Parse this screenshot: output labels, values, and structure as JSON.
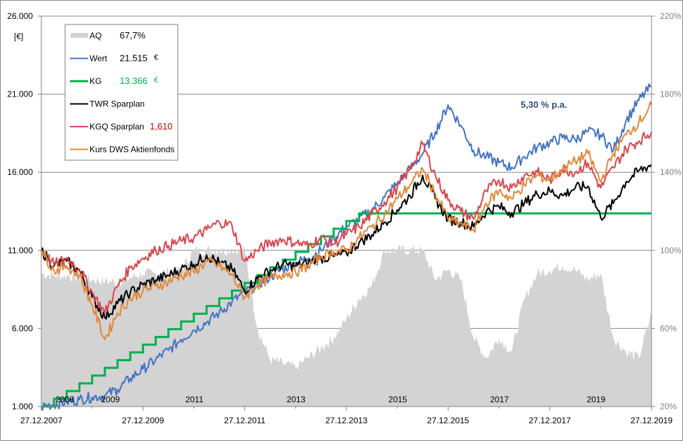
{
  "chart_data": {
    "type": "line",
    "title": "",
    "ylabel": "[€]",
    "ylabel_right": "",
    "xlabel": "",
    "ylim": [
      1000,
      26000
    ],
    "ylim_right": [
      20,
      220
    ],
    "grid": true,
    "legend_position": "top-left",
    "left_ticks": [
      "1.000",
      "6.000",
      "11.000",
      "16.000",
      "21.000",
      "26.000"
    ],
    "left_tick_values": [
      1000,
      6000,
      11000,
      16000,
      21000,
      26000
    ],
    "right_ticks": [
      "20%",
      "60%",
      "100%",
      "140%",
      "180%",
      "220%"
    ],
    "right_tick_values": [
      20,
      60,
      100,
      140,
      180,
      220
    ],
    "x_ticks": [
      "27.12.2007",
      "27.12.2009",
      "27.12.2011",
      "27.12.2013",
      "27.12.2015",
      "27.12.2017",
      "27.12.2019"
    ],
    "x_tick_years": [
      2007.99,
      2009.99,
      2011.99,
      2013.99,
      2015.99,
      2017.99,
      2019.99
    ],
    "x_range_years": [
      2007.99,
      2019.99
    ],
    "year_labels": [
      "2008",
      "2009",
      "2011",
      "2013",
      "2015",
      "2017",
      "2019"
    ],
    "year_label_positions": [
      2008.45,
      2009.35,
      2011.0,
      2013.0,
      2015.0,
      2017.0,
      2018.9
    ],
    "annotation": "5,30  % p.a.",
    "annotation_color": "#2f4e7f",
    "x_start_year": 2007.99,
    "x_step_years": 0.25,
    "series": [
      {
        "name": "AQ",
        "kind": "area",
        "axis": "right",
        "color": "#d3d3d3",
        "legend_value": "67,7%",
        "legend_value_color": "#000000",
        "legend_unit": "",
        "values": [
          88,
          87,
          87,
          86,
          85,
          84,
          84,
          86,
          88,
          88,
          89,
          90,
          100,
          100,
          100,
          100,
          100,
          60,
          44,
          42,
          40,
          45,
          50,
          55,
          65,
          75,
          82,
          100,
          100,
          100,
          100,
          85,
          90,
          85,
          55,
          45,
          55,
          48,
          75,
          88,
          90,
          92,
          90,
          85,
          88,
          55,
          48,
          45,
          67.7
        ]
      },
      {
        "name": "Wert",
        "kind": "line",
        "axis": "left",
        "color": "#4472c4",
        "legend_value": "21.515",
        "legend_value_color": "#000000",
        "legend_unit": "€",
        "values": [
          1000,
          1150,
          1300,
          1450,
          1600,
          1700,
          2100,
          2800,
          3400,
          4000,
          4600,
          5300,
          5900,
          6400,
          7000,
          7700,
          8300,
          8800,
          9300,
          9800,
          10200,
          10500,
          11000,
          11800,
          12500,
          13000,
          13600,
          14400,
          15300,
          16200,
          17200,
          18600,
          20300,
          19000,
          17400,
          17000,
          16600,
          16300,
          17000,
          17600,
          17900,
          18200,
          18100,
          18600,
          18400,
          17400,
          19300,
          20600,
          21515
        ]
      },
      {
        "name": "KG",
        "kind": "line",
        "axis": "left",
        "color": "#00b050",
        "legend_value": "13.366",
        "legend_value_color": "#00b050",
        "legend_unit": "€",
        "values": [
          1000,
          1495,
          1990,
          2485,
          2980,
          3475,
          3970,
          4465,
          4960,
          5455,
          5950,
          6445,
          6940,
          7435,
          7930,
          8425,
          8920,
          9415,
          9910,
          10405,
          10900,
          11395,
          11890,
          12385,
          12880,
          13366,
          13366,
          13366,
          13366,
          13366,
          13366,
          13366,
          13366,
          13366,
          13366,
          13366,
          13366,
          13366,
          13366,
          13366,
          13366,
          13366,
          13366,
          13366,
          13366,
          13366,
          13366,
          13366,
          13366
        ]
      },
      {
        "name": "TWR Sparplan",
        "kind": "line",
        "axis": "left",
        "color": "#000000",
        "legend_value": "",
        "legend_value_color": "#000000",
        "legend_unit": "",
        "values": [
          11000,
          10000,
          10300,
          9700,
          8000,
          6700,
          7600,
          8300,
          8800,
          9100,
          9400,
          9800,
          10100,
          10700,
          10200,
          9800,
          8400,
          9200,
          9700,
          10100,
          10000,
          10200,
          10500,
          10600,
          10800,
          11500,
          12000,
          12800,
          13600,
          14500,
          15800,
          14300,
          13000,
          12800,
          12500,
          13500,
          13800,
          13400,
          14000,
          14600,
          14800,
          14500,
          15000,
          15100,
          13100,
          14000,
          15400,
          16100,
          16500
        ]
      },
      {
        "name": "KGQ Sparplan",
        "kind": "line",
        "axis": "left",
        "color": "#d9474c",
        "legend_value": "1,610",
        "legend_value_color": "#c00000",
        "legend_unit": "",
        "values": [
          11000,
          10100,
          10500,
          9800,
          8300,
          7000,
          8700,
          9900,
          10500,
          11000,
          11300,
          11600,
          11800,
          12300,
          12800,
          12600,
          10300,
          11000,
          11500,
          11700,
          11500,
          11300,
          11800,
          11400,
          12000,
          12500,
          13300,
          14100,
          15000,
          16200,
          17800,
          15800,
          14200,
          13500,
          13000,
          14800,
          15500,
          15000,
          15800,
          16000,
          15500,
          16200,
          16000,
          16600,
          15000,
          16300,
          17500,
          18000,
          18600
        ]
      },
      {
        "name": "Kurs DWS Aktienfonds",
        "kind": "line",
        "axis": "left",
        "color": "#e0883a",
        "legend_value": "",
        "legend_value_color": "#000000",
        "legend_unit": "",
        "values": [
          11000,
          9700,
          10000,
          9400,
          7500,
          5300,
          7000,
          7900,
          8400,
          8700,
          9000,
          9400,
          9600,
          10300,
          10000,
          9400,
          8000,
          8800,
          9200,
          9500,
          9600,
          10000,
          10600,
          10900,
          11000,
          11800,
          12500,
          13300,
          14300,
          15200,
          16200,
          14600,
          13000,
          12700,
          12300,
          14000,
          14800,
          14300,
          15200,
          15800,
          15500,
          16200,
          16700,
          17200,
          15400,
          17200,
          18400,
          19200,
          20300
        ]
      }
    ]
  }
}
